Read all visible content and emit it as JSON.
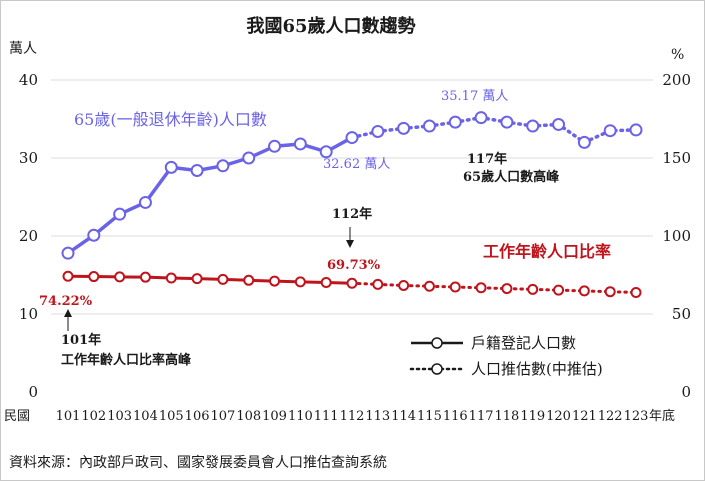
{
  "chart_data": {
    "type": "line",
    "title": "我國65歲人口數趨勢",
    "source": "資料來源：內政部戶政司、國家發展委員會人口推估查詢系統",
    "x_prefix": "民國",
    "x_suffix": "年底",
    "categories": [
      "101",
      "102",
      "103",
      "104",
      "105",
      "106",
      "107",
      "108",
      "109",
      "110",
      "111",
      "112",
      "113",
      "114",
      "115",
      "116",
      "117",
      "118",
      "119",
      "120",
      "121",
      "122",
      "123"
    ],
    "y_left": {
      "unit": "萬人",
      "ticks": [
        0,
        10,
        20,
        30,
        40
      ],
      "ylim": [
        0,
        40
      ]
    },
    "y_right": {
      "unit": "%",
      "ticks": [
        0,
        50,
        100,
        150,
        200
      ],
      "ylim": [
        0,
        200
      ]
    },
    "grid": "horizontal",
    "series": [
      {
        "name": "65歲(一般退休年齡)人口數",
        "axis": "left",
        "color": "#6b63e6",
        "values": [
          17.8,
          20.1,
          22.8,
          24.3,
          28.8,
          28.4,
          29.0,
          30.0,
          31.5,
          31.8,
          30.8,
          32.62,
          33.4,
          33.8,
          34.1,
          34.6,
          35.17,
          34.6,
          34.1,
          34.3,
          32.0,
          33.5,
          33.6
        ],
        "actual_through": "112"
      },
      {
        "name": "工作年齡人口比率",
        "axis": "right",
        "color": "#c0141c",
        "values": [
          74.22,
          74.0,
          73.8,
          73.6,
          73.1,
          72.7,
          72.2,
          71.6,
          71.1,
          70.6,
          70.2,
          69.73,
          69.0,
          68.3,
          67.8,
          67.3,
          66.8,
          66.3,
          65.8,
          65.3,
          64.8,
          64.3,
          63.8
        ],
        "actual_through": "112"
      }
    ],
    "annotations": {
      "peak_ratio_value": "74.22%",
      "peak_ratio_year": "101年",
      "peak_ratio_desc": "工作年齡人口比率高峰",
      "current_year": "112年",
      "current_pop": "32.62 萬人",
      "current_ratio": "69.73%",
      "peak_pop_value": "35.17 萬人",
      "peak_pop_year": "117年",
      "peak_pop_desc": "65歲人口數高峰"
    },
    "legend": {
      "position": "bottom-right",
      "actual": "戶籍登記人口數",
      "projected": "人口推估數(中推估)"
    }
  }
}
